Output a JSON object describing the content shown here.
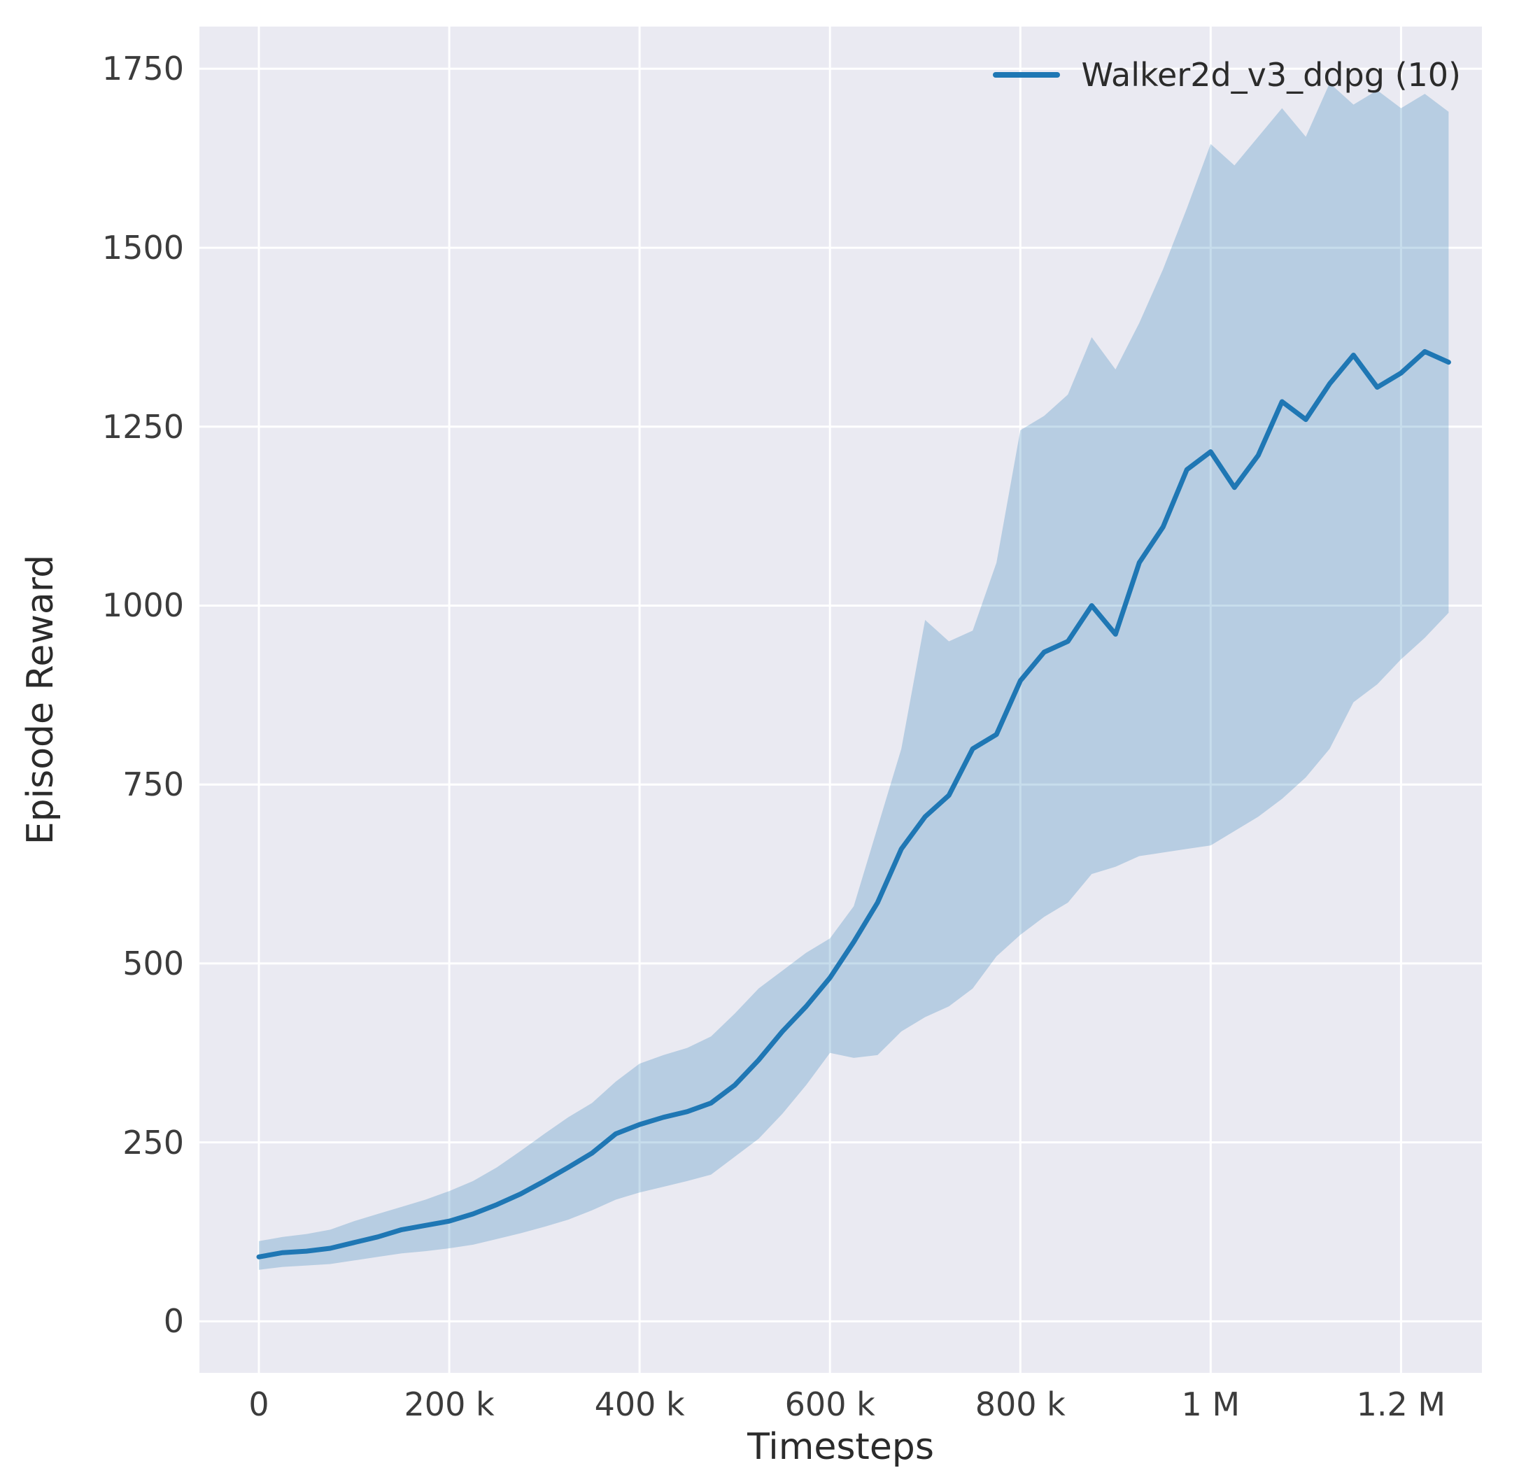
{
  "chart_data": {
    "type": "line",
    "title": "",
    "xlabel": "Timesteps",
    "ylabel": "Episode Reward",
    "grid": true,
    "legend_position": "upper right",
    "xlim": [
      -62500,
      1285000
    ],
    "ylim": [
      -72,
      1809
    ],
    "xticks": {
      "values": [
        0,
        200000,
        400000,
        600000,
        800000,
        1000000,
        1200000
      ],
      "labels": [
        "0",
        "200 k",
        "400 k",
        "600 k",
        "800 k",
        "1 M",
        "1.2 M"
      ]
    },
    "yticks": {
      "values": [
        0,
        250,
        500,
        750,
        1000,
        1250,
        1500,
        1750
      ],
      "labels": [
        "0",
        "250",
        "500",
        "750",
        "1000",
        "1250",
        "1500",
        "1750"
      ]
    },
    "colors": {
      "line": "#1f77b4",
      "band": "rgba(31,119,180,0.25)",
      "plot_bg": "#eaeaf2",
      "grid": "#ffffff",
      "text": "#3c3c3c"
    },
    "series": [
      {
        "name": "Walker2d_v3_ddpg (10)",
        "x": [
          0,
          25000,
          50000,
          75000,
          100000,
          125000,
          150000,
          175000,
          200000,
          225000,
          250000,
          275000,
          300000,
          325000,
          350000,
          375000,
          400000,
          425000,
          450000,
          475000,
          500000,
          525000,
          550000,
          575000,
          600000,
          625000,
          650000,
          675000,
          700000,
          725000,
          750000,
          775000,
          800000,
          825000,
          850000,
          875000,
          900000,
          925000,
          950000,
          975000,
          1000000,
          1025000,
          1050000,
          1075000,
          1100000,
          1125000,
          1150000,
          1175000,
          1200000,
          1225000,
          1250000
        ],
        "mean": [
          90,
          96,
          98,
          102,
          110,
          118,
          128,
          134,
          140,
          150,
          163,
          178,
          196,
          215,
          235,
          262,
          275,
          285,
          293,
          305,
          330,
          365,
          405,
          440,
          480,
          530,
          585,
          660,
          705,
          735,
          800,
          820,
          895,
          935,
          950,
          1000,
          960,
          1060,
          1110,
          1190,
          1215,
          1165,
          1210,
          1285,
          1260,
          1310,
          1350,
          1305,
          1325,
          1355,
          1340
        ],
        "lower": [
          72,
          76,
          78,
          80,
          85,
          90,
          95,
          98,
          102,
          107,
          115,
          123,
          132,
          142,
          155,
          170,
          180,
          188,
          196,
          205,
          230,
          255,
          290,
          330,
          375,
          368,
          372,
          405,
          425,
          440,
          465,
          510,
          540,
          565,
          585,
          625,
          635,
          650,
          655,
          660,
          665,
          685,
          705,
          730,
          760,
          800,
          865,
          890,
          925,
          955,
          990
        ],
        "upper": [
          112,
          118,
          122,
          128,
          140,
          150,
          160,
          170,
          182,
          196,
          215,
          238,
          262,
          285,
          305,
          335,
          360,
          372,
          382,
          398,
          430,
          465,
          490,
          515,
          535,
          580,
          690,
          800,
          980,
          950,
          965,
          1060,
          1245,
          1265,
          1295,
          1375,
          1330,
          1395,
          1470,
          1555,
          1645,
          1615,
          1655,
          1695,
          1655,
          1730,
          1700,
          1720,
          1695,
          1715,
          1690
        ]
      }
    ]
  }
}
